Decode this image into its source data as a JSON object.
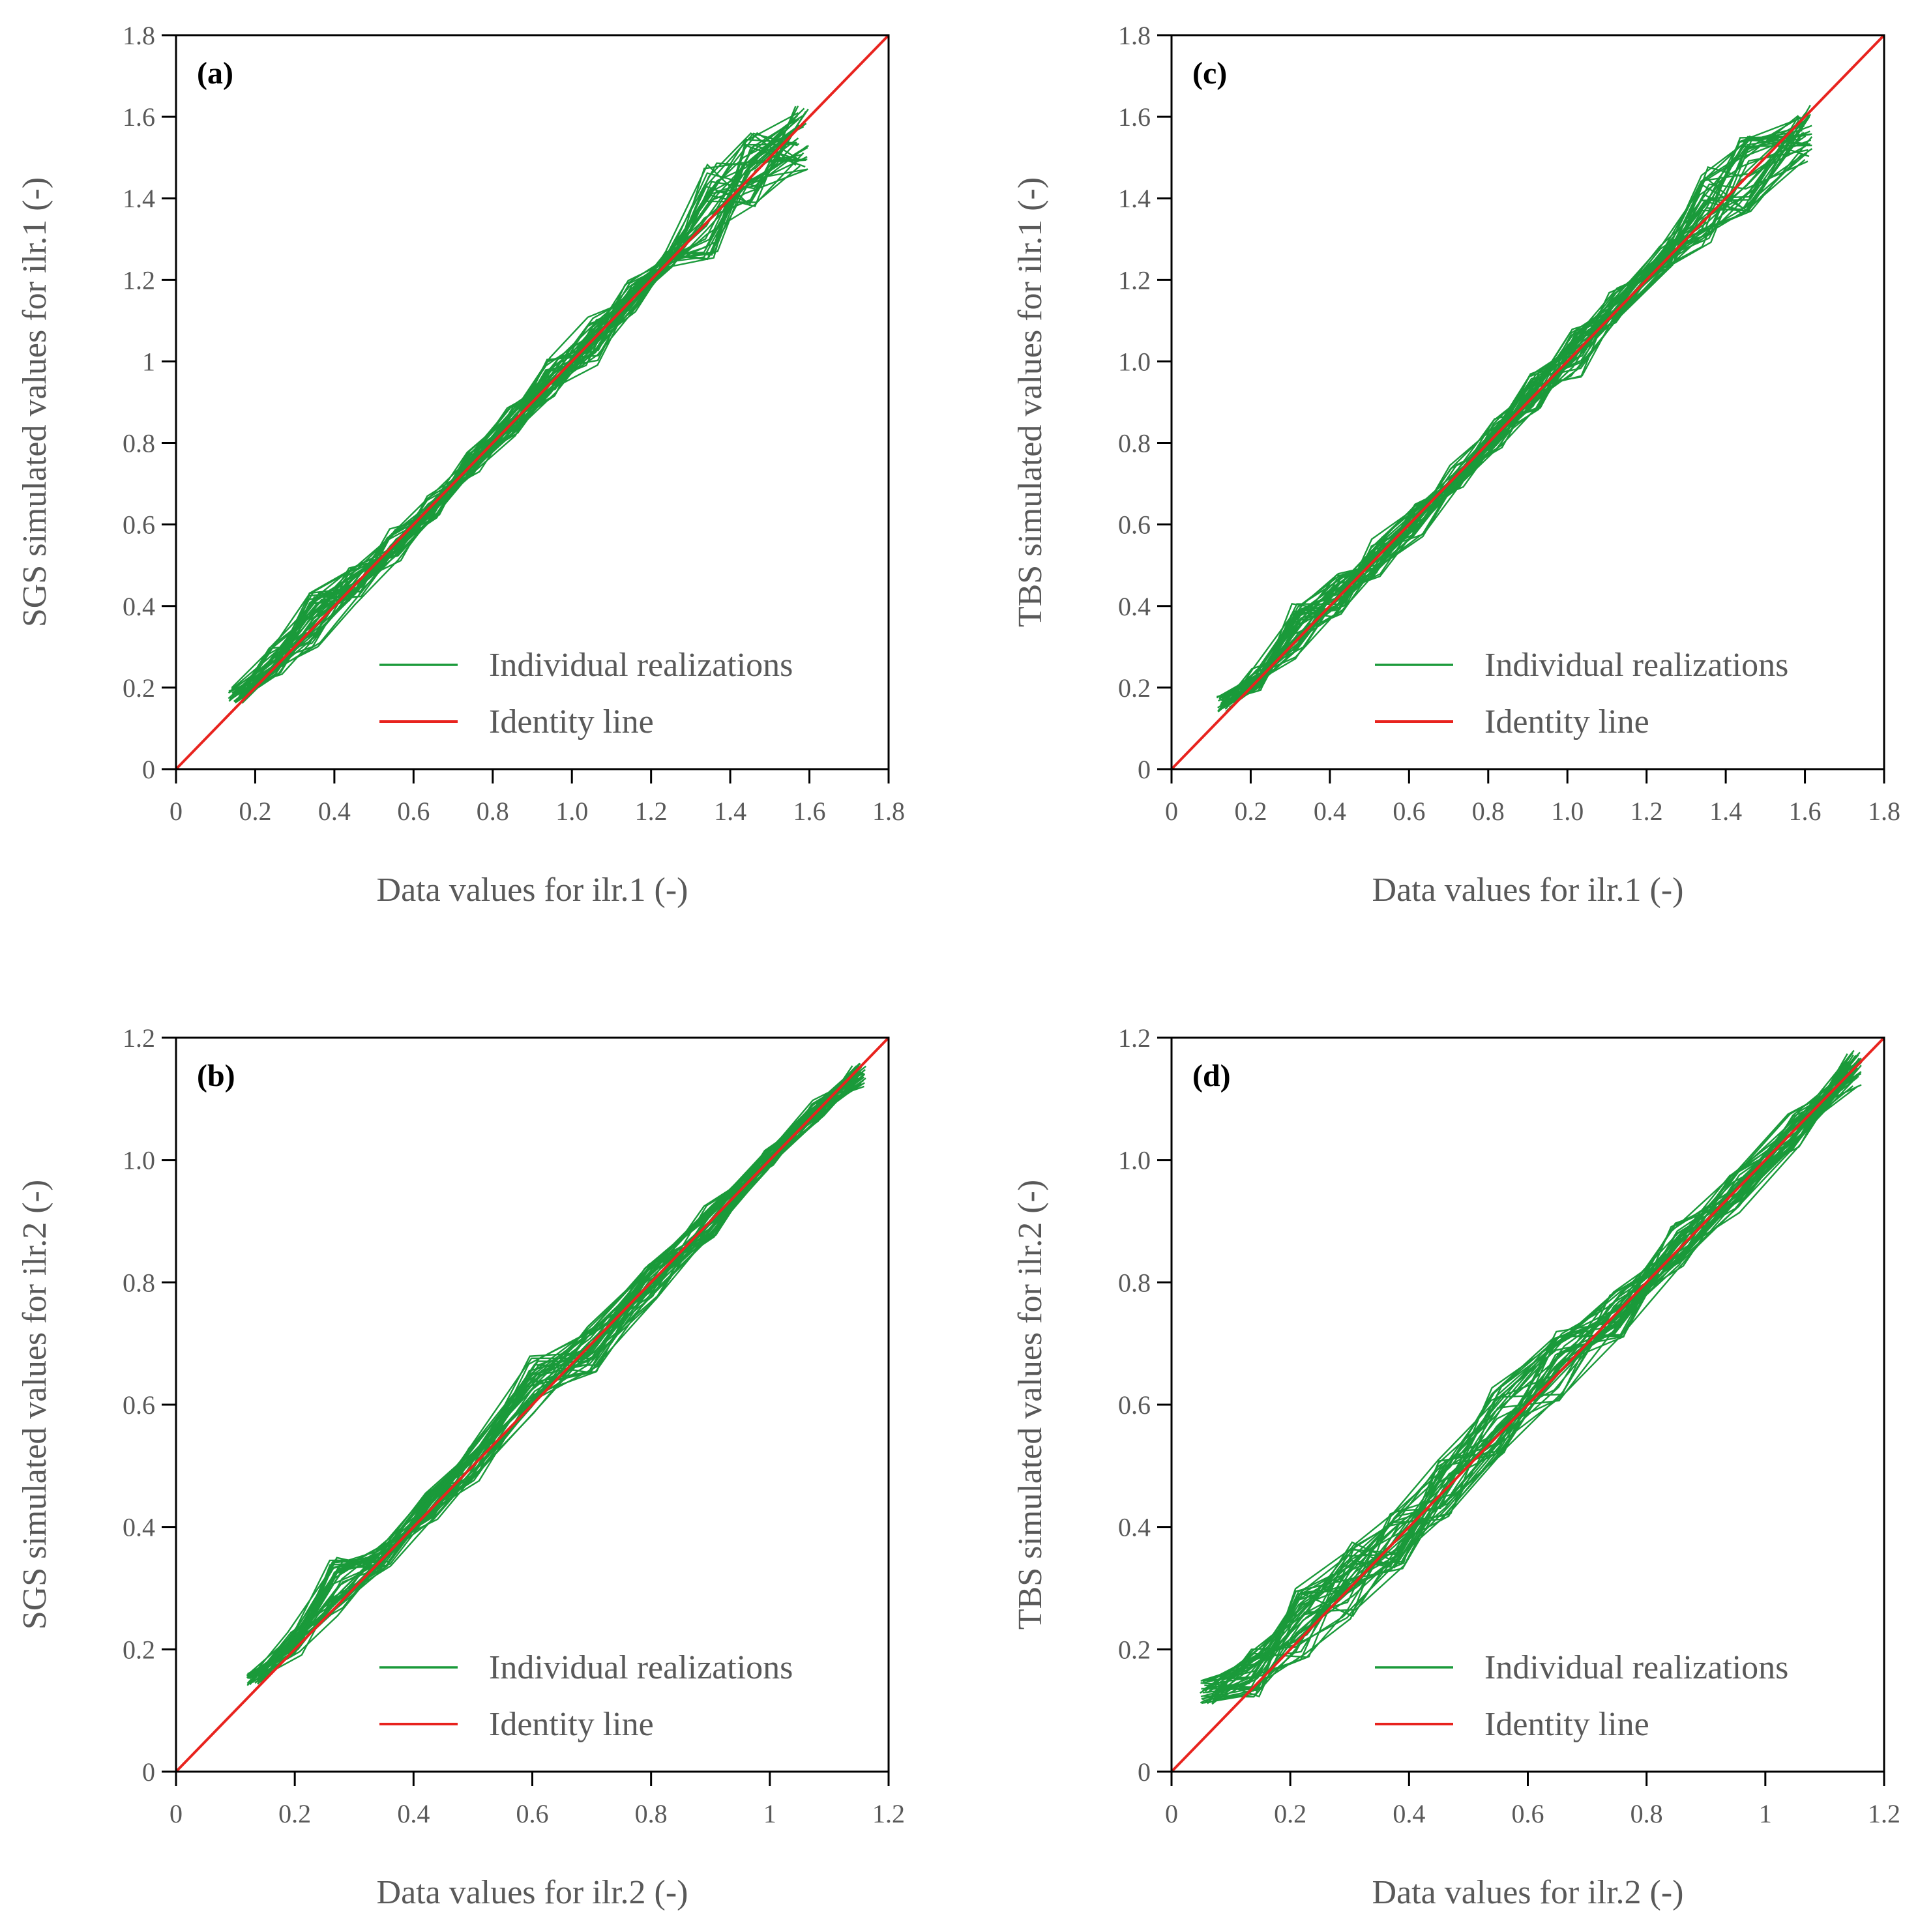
{
  "colors": {
    "realization": "#1a9a3a",
    "identity": "#e8231e",
    "axis": "#000000",
    "text": "#595959"
  },
  "chart_data": [
    {
      "type": "line",
      "panel_label": "(a)",
      "xlabel": "Data values for ilr.1 (-)",
      "ylabel": "SGS simulated values for ilr.1 (-)",
      "xlim": [
        0,
        1.8
      ],
      "ylim": [
        0,
        1.8
      ],
      "xticks": [
        0,
        0.2,
        0.4,
        0.6,
        0.8,
        1.0,
        1.2,
        1.4,
        1.6,
        1.8
      ],
      "xtick_labels": [
        "0",
        "0.2",
        "0.4",
        "0.6",
        "0.8",
        "1.0",
        "1.2",
        "1.4",
        "1.6",
        "1.8"
      ],
      "yticks": [
        0,
        0.2,
        0.4,
        0.6,
        0.8,
        1,
        1.2,
        1.4,
        1.6,
        1.8
      ],
      "ytick_labels": [
        "0",
        "0.2",
        "0.4",
        "0.6",
        "0.8",
        "1",
        "1.2",
        "1.4",
        "1.6",
        "1.8"
      ],
      "legend": [
        "Individual realizations",
        "Identity line"
      ],
      "realization_x": [
        0.15,
        0.25,
        0.35,
        0.45,
        0.55,
        0.65,
        0.75,
        0.85,
        0.95,
        1.05,
        1.15,
        1.25,
        1.35,
        1.45,
        1.58
      ],
      "realization_center": [
        0.18,
        0.27,
        0.37,
        0.45,
        0.55,
        0.64,
        0.75,
        0.85,
        0.96,
        1.05,
        1.16,
        1.25,
        1.37,
        1.46,
        1.55
      ],
      "realization_spread": [
        0.02,
        0.04,
        0.07,
        0.05,
        0.04,
        0.03,
        0.03,
        0.04,
        0.05,
        0.06,
        0.04,
        0.02,
        0.12,
        0.1,
        0.08
      ],
      "realizations_count": 40,
      "identity": {
        "x": [
          0,
          1.8
        ],
        "y": [
          0,
          1.8
        ]
      }
    },
    {
      "type": "line",
      "panel_label": "(b)",
      "xlabel": "Data values for ilr.2 (-)",
      "ylabel": "SGS simulated values for ilr.2 (-)",
      "xlim": [
        0,
        1.2
      ],
      "ylim": [
        0,
        1.2
      ],
      "xticks": [
        0,
        0.2,
        0.4,
        0.6,
        0.8,
        1,
        1.2
      ],
      "xtick_labels": [
        "0",
        "0.2",
        "0.4",
        "0.6",
        "0.8",
        "1",
        "1.2"
      ],
      "yticks": [
        0,
        0.2,
        0.4,
        0.6,
        0.8,
        1.0,
        1.2
      ],
      "ytick_labels": [
        "0",
        "0.2",
        "0.4",
        "0.6",
        "0.8",
        "1.0",
        "1.2"
      ],
      "legend": [
        "Individual realizations",
        "Identity line"
      ],
      "realization_x": [
        0.13,
        0.2,
        0.27,
        0.35,
        0.43,
        0.5,
        0.6,
        0.7,
        0.8,
        0.9,
        1.0,
        1.08,
        1.15
      ],
      "realization_center": [
        0.15,
        0.21,
        0.3,
        0.35,
        0.44,
        0.5,
        0.63,
        0.69,
        0.8,
        0.9,
        1.0,
        1.08,
        1.14
      ],
      "realization_spread": [
        0.01,
        0.02,
        0.05,
        0.02,
        0.03,
        0.03,
        0.05,
        0.04,
        0.03,
        0.03,
        0.02,
        0.02,
        0.02
      ],
      "realizations_count": 40,
      "identity": {
        "x": [
          0,
          1.2
        ],
        "y": [
          0,
          1.2
        ]
      }
    },
    {
      "type": "line",
      "panel_label": "(c)",
      "xlabel": "Data values for ilr.1 (-)",
      "ylabel": "TBS simulated values for ilr.1 (-)",
      "xlim": [
        0,
        1.8
      ],
      "ylim": [
        0,
        1.8
      ],
      "xticks": [
        0,
        0.2,
        0.4,
        0.6,
        0.8,
        1.0,
        1.2,
        1.4,
        1.6,
        1.8
      ],
      "xtick_labels": [
        "0",
        "0.2",
        "0.4",
        "0.6",
        "0.8",
        "1.0",
        "1.2",
        "1.4",
        "1.6",
        "1.8"
      ],
      "yticks": [
        0,
        0.2,
        0.4,
        0.6,
        0.8,
        1.0,
        1.2,
        1.4,
        1.6,
        1.8
      ],
      "ytick_labels": [
        "0",
        "0.2",
        "0.4",
        "0.6",
        "0.8",
        "1.0",
        "1.2",
        "1.4",
        "1.6",
        "1.8"
      ],
      "legend": [
        "Individual realizations",
        "Identity line"
      ],
      "realization_x": [
        0.13,
        0.22,
        0.32,
        0.42,
        0.52,
        0.62,
        0.72,
        0.82,
        0.92,
        1.02,
        1.12,
        1.25,
        1.35,
        1.45,
        1.6
      ],
      "realization_center": [
        0.16,
        0.22,
        0.34,
        0.42,
        0.52,
        0.61,
        0.72,
        0.82,
        0.93,
        1.02,
        1.13,
        1.26,
        1.38,
        1.46,
        1.56
      ],
      "realization_spread": [
        0.02,
        0.03,
        0.07,
        0.06,
        0.05,
        0.04,
        0.03,
        0.04,
        0.05,
        0.06,
        0.05,
        0.03,
        0.1,
        0.1,
        0.07
      ],
      "realizations_count": 40,
      "identity": {
        "x": [
          0,
          1.8
        ],
        "y": [
          0,
          1.8
        ]
      }
    },
    {
      "type": "line",
      "panel_label": "(d)",
      "xlabel": "Data values for ilr.2 (-)",
      "ylabel": "TBS simulated values for ilr.2 (-)",
      "xlim": [
        0,
        1.2
      ],
      "ylim": [
        0,
        1.2
      ],
      "xticks": [
        0,
        0.2,
        0.4,
        0.6,
        0.8,
        1,
        1.2
      ],
      "xtick_labels": [
        "0",
        "0.2",
        "0.4",
        "0.6",
        "0.8",
        "1",
        "1.2"
      ],
      "yticks": [
        0,
        0.2,
        0.4,
        0.6,
        0.8,
        1.0,
        1.2
      ],
      "ytick_labels": [
        "0",
        "0.2",
        "0.4",
        "0.6",
        "0.8",
        "1.0",
        "1.2"
      ],
      "legend": [
        "Individual realizations",
        "Identity line"
      ],
      "realization_x": [
        0.06,
        0.14,
        0.22,
        0.3,
        0.38,
        0.46,
        0.55,
        0.65,
        0.75,
        0.85,
        0.95,
        1.05,
        1.15
      ],
      "realization_center": [
        0.13,
        0.16,
        0.24,
        0.32,
        0.38,
        0.46,
        0.57,
        0.66,
        0.75,
        0.86,
        0.95,
        1.05,
        1.15
      ],
      "realization_spread": [
        0.02,
        0.04,
        0.06,
        0.07,
        0.05,
        0.05,
        0.06,
        0.06,
        0.04,
        0.04,
        0.04,
        0.03,
        0.03
      ],
      "realizations_count": 40,
      "identity": {
        "x": [
          0,
          1.2
        ],
        "y": [
          0,
          1.2
        ]
      }
    }
  ]
}
